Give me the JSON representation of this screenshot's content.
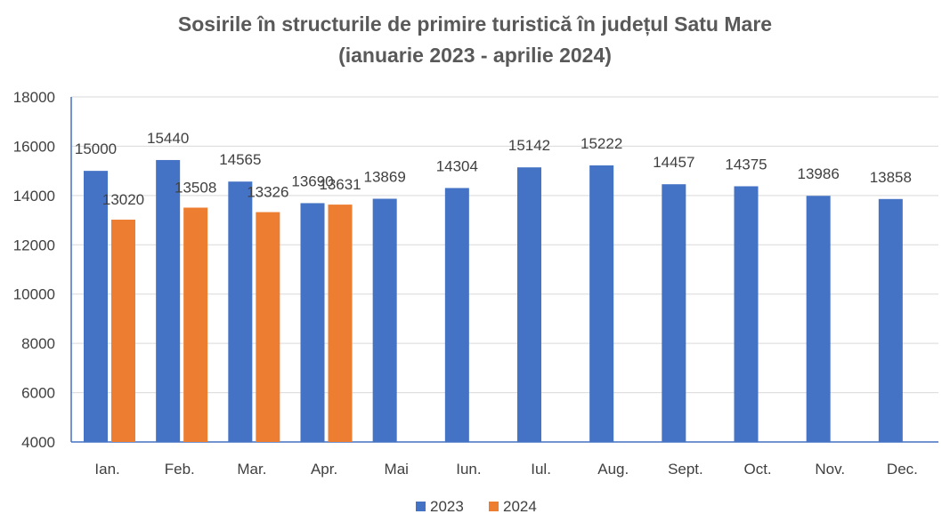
{
  "chart_data": {
    "type": "bar",
    "title": "Sosirile în structurile de primire turistică în județul Satu Mare",
    "subtitle": "(ianuarie 2023 - aprilie 2024)",
    "categories": [
      "Ian.",
      "Feb.",
      "Mar.",
      "Apr.",
      "Mai",
      "Iun.",
      "Iul.",
      "Aug.",
      "Sept.",
      "Oct.",
      "Nov.",
      "Dec."
    ],
    "series": [
      {
        "name": "2023",
        "color": "#4472C4",
        "values": [
          15000,
          15440,
          14565,
          13690,
          13869,
          14304,
          15142,
          15222,
          14457,
          14375,
          13986,
          13858
        ]
      },
      {
        "name": "2024",
        "color": "#ED7D31",
        "values": [
          13020,
          13508,
          13326,
          13631,
          null,
          null,
          null,
          null,
          null,
          null,
          null,
          null
        ]
      }
    ],
    "ylim": [
      4000,
      18000
    ],
    "yticks": [
      4000,
      6000,
      8000,
      10000,
      12000,
      14000,
      16000,
      18000
    ],
    "grid": true,
    "legend": "bottom",
    "xlabel": "",
    "ylabel": "",
    "gridColor": "#D9D9D9",
    "axisColor": "#4472C4",
    "labelColor": "#404040"
  }
}
